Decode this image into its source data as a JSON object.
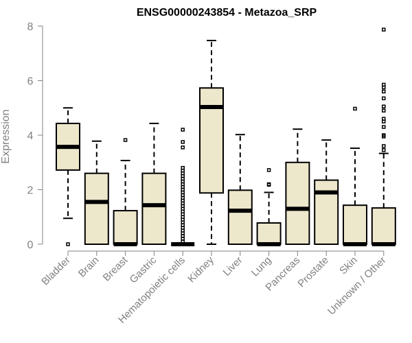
{
  "chart_data": {
    "type": "boxplot",
    "title": "ENSG00000243854 - Metazoa_SRP",
    "ylabel": "Expression",
    "ylim": [
      0,
      8
    ],
    "yticks": [
      0,
      2,
      4,
      6,
      8
    ],
    "colors": {
      "box_fill": "#ede7cc",
      "stroke": "#000000",
      "axis": "#808080",
      "tick_text": "#808080"
    },
    "categories": [
      "Bladder",
      "Brain",
      "Breast",
      "Gastric",
      "Hematopoietic cells",
      "Kidney",
      "Liver",
      "Lung",
      "Pancreas",
      "Prostate",
      "Skin",
      "Unknown / Other"
    ],
    "boxes": [
      {
        "min": 0.95,
        "q1": 2.72,
        "median": 3.57,
        "q3": 4.43,
        "max": 5.0,
        "outliers": [
          0.0
        ]
      },
      {
        "min": 0.0,
        "q1": 0.0,
        "median": 1.55,
        "q3": 2.6,
        "max": 3.78,
        "outliers": []
      },
      {
        "min": 0.0,
        "q1": 0.0,
        "median": 0.0,
        "q3": 1.23,
        "max": 3.07,
        "outliers": [
          3.82
        ]
      },
      {
        "min": 0.0,
        "q1": 0.0,
        "median": 1.43,
        "q3": 2.6,
        "max": 4.43,
        "outliers": []
      },
      {
        "min": 0.0,
        "q1": 0.0,
        "median": 0.0,
        "q3": 0.0,
        "max": 0.0,
        "outliers": [
          0.1,
          0.2,
          0.3,
          0.4,
          0.5,
          0.6,
          0.7,
          0.8,
          0.9,
          1.0,
          1.1,
          1.2,
          1.3,
          1.4,
          1.5,
          1.6,
          1.7,
          1.8,
          1.9,
          2.0,
          2.1,
          2.2,
          2.3,
          2.4,
          2.5,
          2.6,
          2.7,
          2.8,
          3.55,
          3.75,
          4.2
        ]
      },
      {
        "min": 0.0,
        "q1": 1.88,
        "median": 5.03,
        "q3": 5.73,
        "max": 7.47,
        "outliers": []
      },
      {
        "min": 0.0,
        "q1": 0.0,
        "median": 1.23,
        "q3": 1.98,
        "max": 4.02,
        "outliers": []
      },
      {
        "min": 0.0,
        "q1": 0.0,
        "median": 0.0,
        "q3": 0.78,
        "max": 1.9,
        "outliers": [
          2.18,
          2.2,
          2.72
        ]
      },
      {
        "min": 0.0,
        "q1": 0.0,
        "median": 1.3,
        "q3": 3.0,
        "max": 4.22,
        "outliers": []
      },
      {
        "min": 0.0,
        "q1": 0.0,
        "median": 1.9,
        "q3": 2.35,
        "max": 3.82,
        "outliers": []
      },
      {
        "min": 0.0,
        "q1": 0.0,
        "median": 0.0,
        "q3": 1.43,
        "max": 3.52,
        "outliers": [
          4.97
        ]
      },
      {
        "min": 0.0,
        "q1": 0.0,
        "median": 0.0,
        "q3": 1.33,
        "max": 3.33,
        "outliers": [
          3.45,
          3.6,
          3.95,
          4.0,
          4.3,
          4.5,
          4.6,
          4.9,
          5.05,
          5.35,
          5.6,
          5.75,
          5.85,
          7.87
        ]
      }
    ]
  }
}
